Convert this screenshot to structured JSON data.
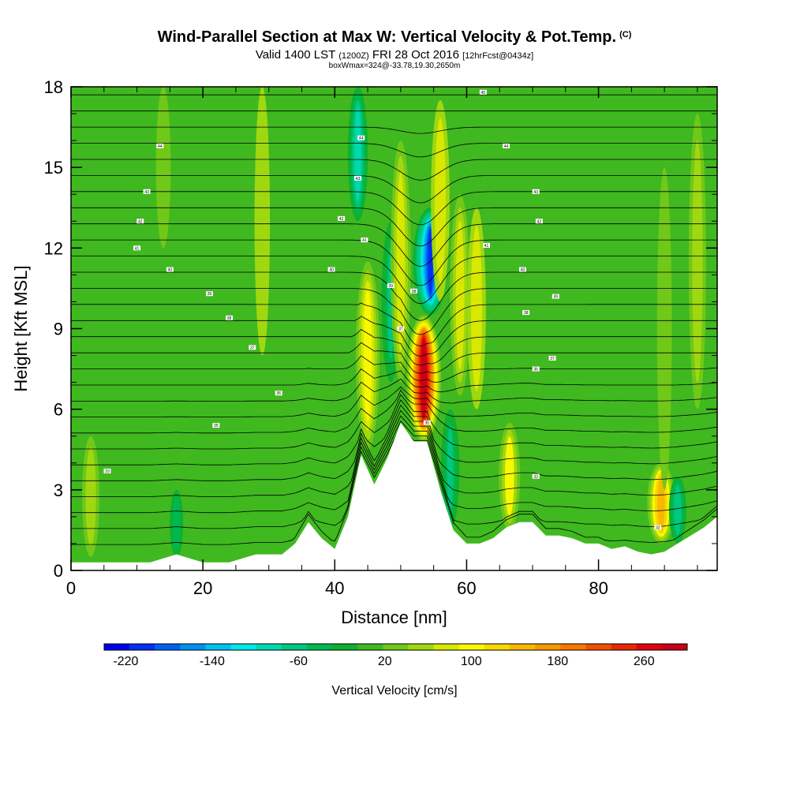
{
  "chart_data": {
    "type": "heatmap",
    "title": "Wind-Parallel Section at Max W: Vertical Velocity & Pot.Temp.",
    "title_mark": "(C)",
    "subtitle_main": "Valid 1400 LST",
    "subtitle_utc": "(1200Z)",
    "subtitle_date": "FRI 28 Oct 2016",
    "subtitle_fcst": "[12hrFcst@0434z]",
    "subtitle2": "boxWmax=324@-33.78,19.30,2650m",
    "xlabel": "Distance [nm]",
    "ylabel": "Height [Kft MSL]",
    "xlim": [
      0,
      98
    ],
    "ylim": [
      0,
      18
    ],
    "x_ticks": [
      0,
      20,
      40,
      60,
      80
    ],
    "y_ticks": [
      0,
      3,
      6,
      9,
      12,
      15,
      18
    ],
    "colorbar": {
      "label": "Vertical Velocity [cm/s]",
      "ticks": [
        -220,
        -140,
        -60,
        20,
        100,
        180,
        260
      ],
      "range": [
        -240,
        300
      ],
      "colors": [
        "#0000f0",
        "#0030f0",
        "#0060f0",
        "#0090f0",
        "#00c0f0",
        "#00e8e8",
        "#00d8b0",
        "#00c880",
        "#00b850",
        "#10b030",
        "#40b820",
        "#70c818",
        "#a0d810",
        "#d8e800",
        "#f8f800",
        "#f8d800",
        "#f8b800",
        "#f89800",
        "#f87800",
        "#f05000",
        "#e82800",
        "#e00010",
        "#c80018"
      ]
    },
    "terrain": {
      "x": [
        0,
        4,
        8,
        12,
        16,
        20,
        24,
        28,
        32,
        34,
        36,
        38,
        40,
        42,
        44,
        46,
        48,
        50,
        52,
        54,
        56,
        58,
        60,
        62,
        64,
        66,
        68,
        70,
        72,
        74,
        76,
        78,
        80,
        82,
        84,
        86,
        88,
        90,
        92,
        94,
        96,
        98
      ],
      "height": [
        0.3,
        0.3,
        0.3,
        0.3,
        0.6,
        0.3,
        0.3,
        0.6,
        0.6,
        1.0,
        1.8,
        1.2,
        0.8,
        2.0,
        4.3,
        3.2,
        4.2,
        5.5,
        4.8,
        4.8,
        3.0,
        1.5,
        1.0,
        1.0,
        1.2,
        1.6,
        1.8,
        1.8,
        1.3,
        1.3,
        1.2,
        1.0,
        1.0,
        0.8,
        0.9,
        0.7,
        0.6,
        0.7,
        1.0,
        1.3,
        1.6,
        2.0
      ]
    },
    "w_features": [
      {
        "x": 45.0,
        "z0": 4.5,
        "z1": 11.5,
        "peak_cm_s": 110
      },
      {
        "x": 53.5,
        "z0": 4.8,
        "z1": 9.5,
        "peak_cm_s": 280
      },
      {
        "x": 54.5,
        "z0": 9.5,
        "z1": 13.5,
        "peak_cm_s": -210
      },
      {
        "x": 56.0,
        "z0": 10.0,
        "z1": 17.5,
        "peak_cm_s": 70
      },
      {
        "x": 43.5,
        "z0": 13.0,
        "z1": 18.0,
        "peak_cm_s": -80
      },
      {
        "x": 48.5,
        "z0": 7.0,
        "z1": 13.0,
        "peak_cm_s": -70
      },
      {
        "x": 50.0,
        "z0": 7.0,
        "z1": 16.0,
        "peak_cm_s": 80
      },
      {
        "x": 59.0,
        "z0": 6.5,
        "z1": 14.0,
        "peak_cm_s": 80
      },
      {
        "x": 61.5,
        "z0": 6.0,
        "z1": 13.5,
        "peak_cm_s": 70
      },
      {
        "x": 57.5,
        "z0": 1.5,
        "z1": 6.0,
        "peak_cm_s": -70
      },
      {
        "x": 66.5,
        "z0": 1.5,
        "z1": 5.5,
        "peak_cm_s": 90
      },
      {
        "x": 89.5,
        "z0": 1.0,
        "z1": 4.0,
        "peak_cm_s": 140
      },
      {
        "x": 92.0,
        "z0": 1.0,
        "z1": 3.5,
        "peak_cm_s": -60
      },
      {
        "x": 3.0,
        "z0": 0.5,
        "z1": 5.0,
        "peak_cm_s": 60
      },
      {
        "x": 16.0,
        "z0": 0.5,
        "z1": 3.0,
        "peak_cm_s": -30
      },
      {
        "x": 95.0,
        "z0": 6.0,
        "z1": 17.0,
        "peak_cm_s": 60
      },
      {
        "x": 90.0,
        "z0": 3.0,
        "z1": 15.0,
        "peak_cm_s": 40
      },
      {
        "x": 29.0,
        "z0": 8.0,
        "z1": 18.0,
        "peak_cm_s": 45
      },
      {
        "x": 14.0,
        "z0": 12.0,
        "z1": 18.0,
        "peak_cm_s": 40
      }
    ],
    "contour_marks": [
      {
        "x": 13.5,
        "z": 15.8,
        "text": "44"
      },
      {
        "x": 11.5,
        "z": 14.1,
        "text": "43"
      },
      {
        "x": 10.5,
        "z": 13.0,
        "text": "42"
      },
      {
        "x": 10.0,
        "z": 12.0,
        "text": "41"
      },
      {
        "x": 15.0,
        "z": 11.2,
        "text": "40"
      },
      {
        "x": 21.0,
        "z": 10.3,
        "text": "39"
      },
      {
        "x": 24.0,
        "z": 9.4,
        "text": "38"
      },
      {
        "x": 27.5,
        "z": 8.3,
        "text": "37"
      },
      {
        "x": 31.5,
        "z": 6.6,
        "text": "36"
      },
      {
        "x": 22.0,
        "z": 5.4,
        "text": "35"
      },
      {
        "x": 5.5,
        "z": 3.7,
        "text": "33"
      },
      {
        "x": 44.0,
        "z": 16.1,
        "text": "44"
      },
      {
        "x": 43.5,
        "z": 14.6,
        "text": "43"
      },
      {
        "x": 41.0,
        "z": 13.1,
        "text": "42"
      },
      {
        "x": 44.5,
        "z": 12.3,
        "text": "41"
      },
      {
        "x": 39.5,
        "z": 11.2,
        "text": "40"
      },
      {
        "x": 48.5,
        "z": 10.6,
        "text": "39"
      },
      {
        "x": 52.0,
        "z": 10.4,
        "text": "38"
      },
      {
        "x": 50.0,
        "z": 9.0,
        "text": "37"
      },
      {
        "x": 54.0,
        "z": 5.5,
        "text": "35"
      },
      {
        "x": 62.5,
        "z": 17.8,
        "text": "45"
      },
      {
        "x": 66.0,
        "z": 15.8,
        "text": "44"
      },
      {
        "x": 70.5,
        "z": 14.1,
        "text": "43"
      },
      {
        "x": 71.0,
        "z": 13.0,
        "text": "42"
      },
      {
        "x": 63.0,
        "z": 12.1,
        "text": "41"
      },
      {
        "x": 68.5,
        "z": 11.2,
        "text": "40"
      },
      {
        "x": 73.5,
        "z": 10.2,
        "text": "39"
      },
      {
        "x": 69.0,
        "z": 9.6,
        "text": "38"
      },
      {
        "x": 73.0,
        "z": 7.9,
        "text": "37"
      },
      {
        "x": 70.5,
        "z": 7.5,
        "text": "36"
      },
      {
        "x": 70.5,
        "z": 3.5,
        "text": "33"
      },
      {
        "x": 89.0,
        "z": 1.6,
        "text": "32"
      }
    ]
  }
}
